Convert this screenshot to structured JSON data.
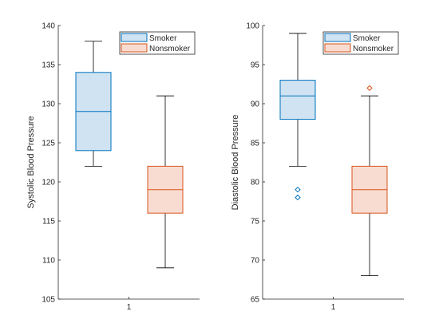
{
  "chart_data": [
    {
      "type": "box",
      "ylabel": "Systolic Blood Pressure",
      "ylim": [
        105,
        140
      ],
      "yticks": [
        105,
        110,
        115,
        120,
        125,
        130,
        135,
        140
      ],
      "xticks": [
        "1"
      ],
      "legend": {
        "placement": "top-right",
        "entries": [
          "Smoker",
          "Nonsmoker"
        ]
      },
      "series": [
        {
          "name": "Smoker",
          "color": "#0072BD",
          "fill": "#cfe3f2",
          "min": 122,
          "q1": 124,
          "median": 129,
          "q3": 134,
          "max": 138,
          "outliers": []
        },
        {
          "name": "Nonsmoker",
          "color": "#D95319",
          "fill": "#f8dcd1",
          "min": 109,
          "q1": 116,
          "median": 119,
          "q3": 122,
          "max": 131,
          "outliers": []
        }
      ]
    },
    {
      "type": "box",
      "ylabel": "Diastolic Blood Pressure",
      "ylim": [
        65,
        100
      ],
      "yticks": [
        65,
        70,
        75,
        80,
        85,
        90,
        95,
        100
      ],
      "xticks": [
        "1"
      ],
      "legend": {
        "placement": "top-right",
        "entries": [
          "Smoker",
          "Nonsmoker"
        ]
      },
      "series": [
        {
          "name": "Smoker",
          "color": "#0072BD",
          "fill": "#cfe3f2",
          "min": 82,
          "q1": 88,
          "median": 91,
          "q3": 93,
          "max": 99,
          "outliers": [
            79,
            78
          ]
        },
        {
          "name": "Nonsmoker",
          "color": "#D95319",
          "fill": "#f8dcd1",
          "min": 68,
          "q1": 76,
          "median": 79,
          "q3": 82,
          "max": 91,
          "outliers": [
            92
          ]
        }
      ]
    }
  ]
}
